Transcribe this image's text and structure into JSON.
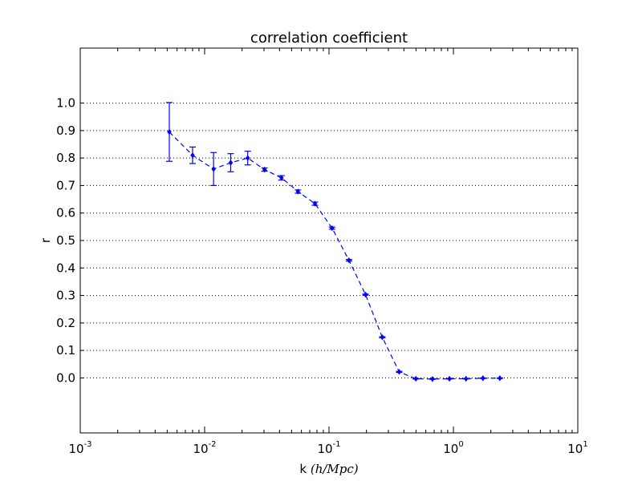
{
  "chart_data": {
    "type": "line",
    "title": "correlation coefficient",
    "xlabel_prefix": "k ",
    "xlabel_math": "(h/Mpc)",
    "ylabel": "r",
    "xscale": "log",
    "xlim": [
      0.001,
      10
    ],
    "ylim": [
      -0.2,
      1.2
    ],
    "grid": "horizontal-dotted",
    "x_ticks": [
      {
        "base": "10",
        "exp": "-3"
      },
      {
        "base": "10",
        "exp": "-2"
      },
      {
        "base": "10",
        "exp": "-1"
      },
      {
        "base": "10",
        "exp": "0"
      },
      {
        "base": "10",
        "exp": "1"
      }
    ],
    "y_ticks": [
      "0.0",
      "0.1",
      "0.2",
      "0.3",
      "0.4",
      "0.5",
      "0.6",
      "0.7",
      "0.8",
      "0.9",
      "1.0"
    ],
    "series": [
      {
        "color": "#0000ff",
        "linestyle": "dashed",
        "marker": "diamond",
        "x": [
          0.0052,
          0.008,
          0.0118,
          0.0162,
          0.0222,
          0.0303,
          0.0415,
          0.0563,
          0.0771,
          0.1058,
          0.1447,
          0.1966,
          0.2681,
          0.3665,
          0.499,
          0.6785,
          0.9296,
          1.2628,
          1.7271,
          2.3625
        ],
        "y": [
          0.895,
          0.81,
          0.76,
          0.783,
          0.8,
          0.758,
          0.728,
          0.678,
          0.634,
          0.545,
          0.428,
          0.303,
          0.148,
          0.022,
          -0.003,
          -0.004,
          -0.003,
          -0.003,
          -0.001,
          -0.001
        ],
        "err": [
          0.107,
          0.03,
          0.06,
          0.033,
          0.025,
          0.006,
          0.008,
          0.006,
          0.006,
          0.004,
          0.003,
          0.002,
          0.002,
          0.002,
          0.001,
          0.001,
          0.001,
          0.001,
          0.001,
          0.001
        ]
      }
    ]
  }
}
